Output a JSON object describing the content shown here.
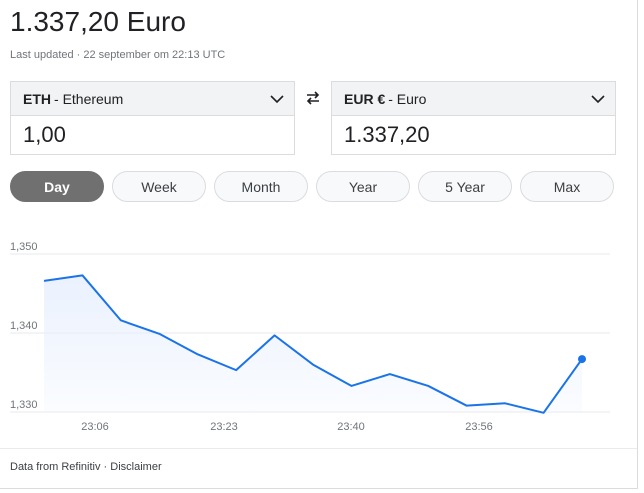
{
  "headline": {
    "amount": "1.337,20",
    "currency": "Euro"
  },
  "last_updated": "Last updated · 22 september om 22:13 UTC",
  "from": {
    "code": "ETH",
    "name": "Ethereum",
    "value": "1,00",
    "icon": "chevron-down-icon"
  },
  "to": {
    "code": "EUR €",
    "name": "Euro",
    "value": "1.337,20",
    "icon": "chevron-down-icon"
  },
  "swap_icon": "swap-arrows-icon",
  "tabs": [
    {
      "label": "Day",
      "active": true
    },
    {
      "label": "Week",
      "active": false
    },
    {
      "label": "Month",
      "active": false
    },
    {
      "label": "Year",
      "active": false
    },
    {
      "label": "5 Year",
      "active": false
    },
    {
      "label": "Max",
      "active": false
    }
  ],
  "colors": {
    "line": "#1a73e8",
    "fill": "#e8f0fe",
    "grid": "#e8eaed",
    "active_tab": "#707070"
  },
  "chart_data": {
    "type": "area",
    "x": [
      "22:58",
      "23:02",
      "23:08",
      "23:13",
      "23:18",
      "23:23",
      "23:28",
      "23:33",
      "23:38",
      "23:43",
      "23:48",
      "23:53",
      "23:58",
      "00:03",
      "00:08"
    ],
    "series": [
      {
        "values": [
          1346.6,
          1347.3,
          1341.6,
          1339.9,
          1337.3,
          1335.3,
          1339.7,
          1336.0,
          1333.3,
          1334.8,
          1333.3,
          1330.8,
          1331.1,
          1329.9,
          1336.7
        ]
      }
    ],
    "xticks": [
      "23:06",
      "23:23",
      "23:40",
      "23:56"
    ],
    "yticks": [
      "1,330",
      "1,340",
      "1,350"
    ],
    "ylim": [
      1330,
      1350
    ],
    "grid": true
  },
  "footer": {
    "source": "Data from Refinitiv",
    "separator": " · ",
    "disclaimer": "Disclaimer"
  }
}
